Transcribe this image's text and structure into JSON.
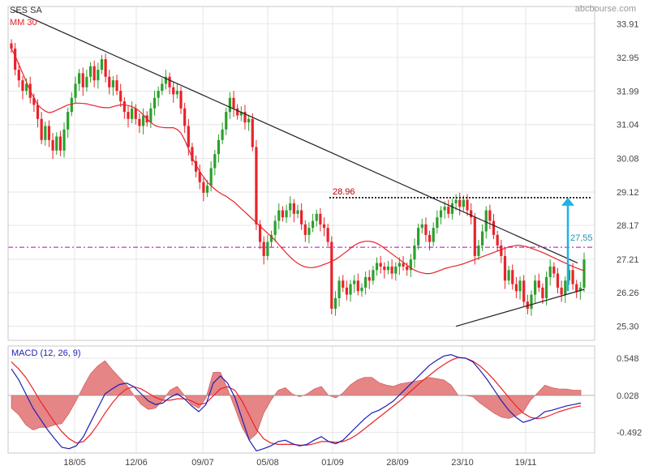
{
  "header": {
    "symbol": "SES SA",
    "brand": "abcbourse.com"
  },
  "colors": {
    "up": "#2ca02c",
    "down": "#e8232a",
    "ma": "#e8232a",
    "trendline": "#222222",
    "resistance": "#000000",
    "support_dash": "#c000c0",
    "target_arrow": "#1fb3e6",
    "macd_line": "#1f1fb4",
    "signal_line": "#e8232a",
    "histogram": "#e07070",
    "grid": "#e6e6e6"
  },
  "chart_data": [
    {
      "type": "candlestick",
      "title": "SES SA",
      "indicator_label": "MM 30",
      "ylim": [
        24.9,
        34.4
      ],
      "y_ticks": [
        "33.91",
        "32.95",
        "31.99",
        "31.04",
        "30.08",
        "29.12",
        "28.17",
        "27.21",
        "26.26",
        "25.30"
      ],
      "x_ticks": [
        "18/05",
        "12/06",
        "09/07",
        "05/08",
        "01/09",
        "28/09",
        "23/10",
        "19/11"
      ],
      "annotations": {
        "resistance_label": "28.96",
        "resistance_level": 28.96,
        "support_level": 27.55,
        "target_label": "27,55",
        "target_arrow": {
          "from": 26.3,
          "to": 28.96
        },
        "downtrend_line": {
          "from": 34.3,
          "to": 27.1
        },
        "uptrend_line": {
          "from": 25.3,
          "to": 26.35
        }
      },
      "closes": [
        33.2,
        32.6,
        32.3,
        32.0,
        32.2,
        31.8,
        31.6,
        31.2,
        30.6,
        31.0,
        30.6,
        30.3,
        30.7,
        30.3,
        30.9,
        31.4,
        31.8,
        32.2,
        32.5,
        32.1,
        32.4,
        32.7,
        32.3,
        32.6,
        32.9,
        32.4,
        32.1,
        32.3,
        32.0,
        31.7,
        31.4,
        31.2,
        31.5,
        31.2,
        31.0,
        31.3,
        31.1,
        31.5,
        31.8,
        32.0,
        32.2,
        32.4,
        32.1,
        31.9,
        32.0,
        31.5,
        31.0,
        30.4,
        30.0,
        29.7,
        29.4,
        29.1,
        29.3,
        29.8,
        30.2,
        30.6,
        30.9,
        31.4,
        31.8,
        31.5,
        31.3,
        31.4,
        31.1,
        31.2,
        30.4,
        28.2,
        27.7,
        27.3,
        27.7,
        27.9,
        28.3,
        28.6,
        28.4,
        28.6,
        28.8,
        28.5,
        28.6,
        28.2,
        27.9,
        28.1,
        28.3,
        28.5,
        28.2,
        28.1,
        27.7,
        25.8,
        26.1,
        26.6,
        26.4,
        26.2,
        26.5,
        26.6,
        26.3,
        26.4,
        26.7,
        26.6,
        26.9,
        27.1,
        27.0,
        26.9,
        27.0,
        26.8,
        27.0,
        27.1,
        27.0,
        26.9,
        27.2,
        27.6,
        28.1,
        28.2,
        27.9,
        27.7,
        28.1,
        28.4,
        28.6,
        28.7,
        28.5,
        28.8,
        28.9,
        28.7,
        28.9,
        28.6,
        28.4,
        27.3,
        27.6,
        28.0,
        28.6,
        28.3,
        27.9,
        27.6,
        27.3,
        26.6,
        26.9,
        26.5,
        26.3,
        26.6,
        26.0,
        25.8,
        26.2,
        26.6,
        26.4,
        26.1,
        26.7,
        27.0,
        26.8,
        26.4,
        26.2,
        26.6,
        26.9,
        26.5,
        26.3,
        26.4,
        27.2
      ],
      "ma30": [
        33.2,
        33.0,
        32.75,
        32.5,
        32.25,
        32.0,
        31.8,
        31.6,
        31.5,
        31.42,
        31.38,
        31.4,
        31.45,
        31.5,
        31.55,
        31.6,
        31.62,
        31.65,
        31.65,
        31.64,
        31.63,
        31.6,
        31.58,
        31.55,
        31.53,
        31.52,
        31.52,
        31.55,
        31.58,
        31.6,
        31.6,
        31.58,
        31.55,
        31.5,
        31.42,
        31.32,
        31.2,
        31.1,
        31.02,
        30.98,
        30.96,
        30.95,
        30.95,
        30.95,
        30.9,
        30.8,
        30.6,
        30.35,
        30.1,
        29.9,
        29.7,
        29.55,
        29.4,
        29.3,
        29.2,
        29.12,
        29.05,
        29.0,
        28.92,
        28.85,
        28.75,
        28.65,
        28.55,
        28.45,
        28.35,
        28.25,
        28.15,
        28.05,
        27.95,
        27.85,
        27.75,
        27.62,
        27.5,
        27.38,
        27.27,
        27.17,
        27.09,
        27.03,
        26.99,
        26.97,
        26.97,
        26.99,
        27.02,
        27.06,
        27.1,
        27.15,
        27.2,
        27.27,
        27.35,
        27.43,
        27.52,
        27.6,
        27.66,
        27.7,
        27.72,
        27.72,
        27.7,
        27.66,
        27.6,
        27.52,
        27.44,
        27.36,
        27.28,
        27.2,
        27.12,
        27.04,
        26.96,
        26.9,
        26.85,
        26.82,
        26.8,
        26.8,
        26.82,
        26.86,
        26.9,
        26.94,
        26.97,
        27.0,
        27.02,
        27.05,
        27.08,
        27.12,
        27.16,
        27.2,
        27.24,
        27.28,
        27.32,
        27.36,
        27.4,
        27.44,
        27.48,
        27.52,
        27.56,
        27.58,
        27.6,
        27.6,
        27.58,
        27.56,
        27.52,
        27.48,
        27.44,
        27.4,
        27.35,
        27.3,
        27.25,
        27.2,
        27.15,
        27.1,
        27.05,
        27.0,
        26.96,
        26.92,
        26.88
      ]
    },
    {
      "type": "line",
      "title": "MACD (12, 26, 9)",
      "ylim": [
        -0.78,
        0.72
      ],
      "y_ticks": [
        "0.548",
        "0.028",
        "-0.492"
      ],
      "x_ticks": [
        "18/05",
        "12/06",
        "09/07",
        "05/08",
        "01/09",
        "28/09",
        "23/10",
        "19/11"
      ],
      "series": [
        {
          "name": "MACD",
          "values": [
            0.4,
            0.25,
            0.05,
            -0.15,
            -0.3,
            -0.45,
            -0.58,
            -0.7,
            -0.72,
            -0.68,
            -0.55,
            -0.35,
            -0.15,
            0.05,
            0.12,
            0.18,
            0.2,
            0.15,
            0.05,
            -0.05,
            -0.1,
            -0.08,
            0.0,
            0.05,
            -0.02,
            -0.12,
            -0.2,
            -0.1,
            0.2,
            0.3,
            0.2,
            0.0,
            -0.3,
            -0.6,
            -0.75,
            -0.72,
            -0.68,
            -0.62,
            -0.6,
            -0.65,
            -0.68,
            -0.66,
            -0.6,
            -0.55,
            -0.62,
            -0.65,
            -0.6,
            -0.5,
            -0.4,
            -0.3,
            -0.22,
            -0.18,
            -0.12,
            -0.05,
            0.05,
            0.15,
            0.25,
            0.35,
            0.45,
            0.52,
            0.58,
            0.6,
            0.56,
            0.55,
            0.5,
            0.38,
            0.25,
            0.1,
            -0.05,
            -0.18,
            -0.28,
            -0.35,
            -0.32,
            -0.28,
            -0.2,
            -0.18,
            -0.15,
            -0.12,
            -0.1,
            -0.08
          ]
        },
        {
          "name": "Signal",
          "values": [
            0.5,
            0.4,
            0.28,
            0.12,
            -0.05,
            -0.2,
            -0.35,
            -0.48,
            -0.58,
            -0.64,
            -0.62,
            -0.52,
            -0.38,
            -0.22,
            -0.08,
            0.04,
            0.12,
            0.15,
            0.12,
            0.06,
            0.0,
            -0.04,
            -0.04,
            -0.02,
            -0.02,
            -0.05,
            -0.1,
            -0.08,
            0.02,
            0.12,
            0.15,
            0.1,
            -0.05,
            -0.25,
            -0.45,
            -0.58,
            -0.64,
            -0.66,
            -0.66,
            -0.66,
            -0.67,
            -0.67,
            -0.65,
            -0.62,
            -0.62,
            -0.63,
            -0.62,
            -0.58,
            -0.52,
            -0.44,
            -0.36,
            -0.28,
            -0.2,
            -0.12,
            -0.04,
            0.05,
            0.14,
            0.23,
            0.31,
            0.39,
            0.46,
            0.52,
            0.56,
            0.55,
            0.51,
            0.44,
            0.35,
            0.24,
            0.12,
            0.0,
            -0.12,
            -0.22,
            -0.28,
            -0.3,
            -0.28,
            -0.24,
            -0.2,
            -0.17,
            -0.14,
            -0.12
          ]
        }
      ]
    }
  ]
}
